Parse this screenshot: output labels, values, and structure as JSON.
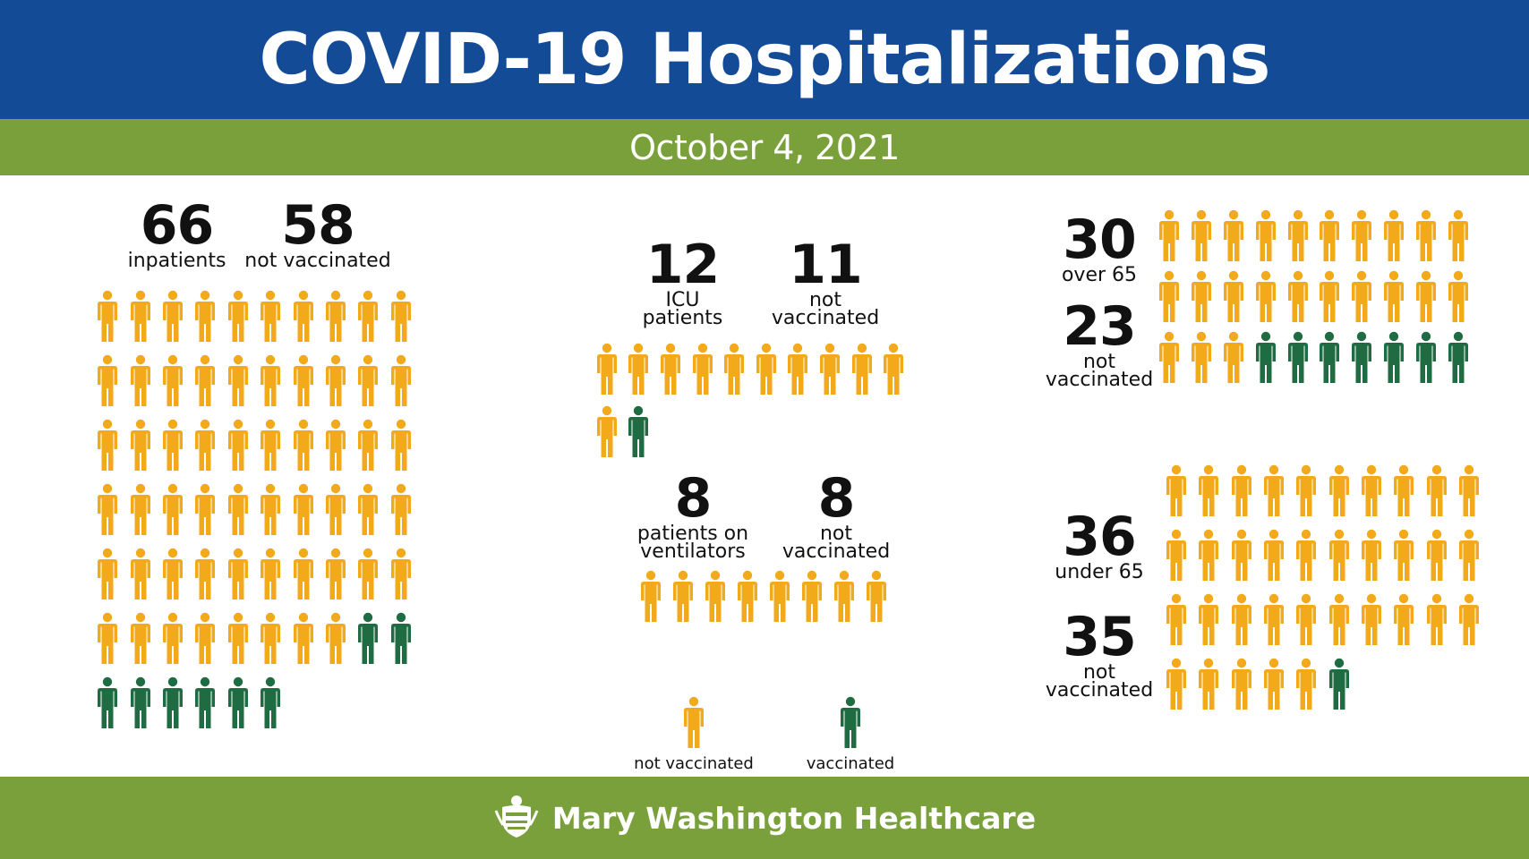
{
  "title": "COVID-19 Hospitalizations",
  "date": "October 4, 2021",
  "colors": {
    "header": "#134b96",
    "band": "#7aa03c",
    "not_vaccinated": "#f2a91a",
    "vaccinated": "#1f6b42"
  },
  "inpatients": {
    "total": "66",
    "total_label": "inpatients",
    "not_vaccinated": "58",
    "not_vaccinated_label": "not vaccinated",
    "icons_not_vaccinated": 58,
    "icons_vaccinated": 8
  },
  "icu": {
    "total": "12",
    "total_label_1": "ICU",
    "total_label_2": "patients",
    "not_vaccinated": "11",
    "not_vaccinated_label_1": "not",
    "not_vaccinated_label_2": "vaccinated",
    "icons_not_vaccinated": 11,
    "icons_vaccinated": 1
  },
  "ventilators": {
    "total": "8",
    "total_label_1": "patients on",
    "total_label_2": "ventilators",
    "not_vaccinated": "8",
    "not_vaccinated_label_1": "not",
    "not_vaccinated_label_2": "vaccinated",
    "icons_not_vaccinated": 8,
    "icons_vaccinated": 0
  },
  "over65": {
    "total": "30",
    "total_label": "over 65",
    "not_vaccinated": "23",
    "not_vaccinated_label_1": "not",
    "not_vaccinated_label_2": "vaccinated",
    "icons_not_vaccinated": 23,
    "icons_vaccinated": 7
  },
  "under65": {
    "total": "36",
    "total_label": "under 65",
    "not_vaccinated": "35",
    "not_vaccinated_label_1": "not",
    "not_vaccinated_label_2": "vaccinated",
    "icons_not_vaccinated": 35,
    "icons_vaccinated": 1
  },
  "legend": {
    "not_vaccinated": "not vaccinated",
    "vaccinated": "vaccinated"
  },
  "footer": {
    "organization": "Mary Washington Healthcare",
    "logo_icon": "crest-icon"
  }
}
